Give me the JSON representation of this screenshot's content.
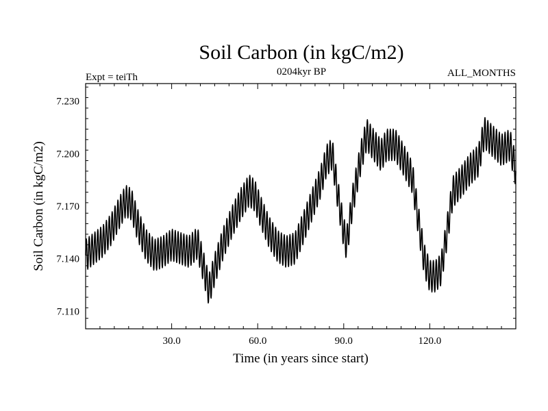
{
  "chart_data": {
    "type": "line",
    "title": "Soil Carbon (in kgC/m2)",
    "subtitle_left": "Expt = teiTh",
    "subtitle_center": "0204kyr BP",
    "subtitle_right": "ALL_MONTHS",
    "xlabel": "Time (in years since start)",
    "ylabel": "Soil Carbon (in kgC/m2)",
    "xlim": [
      0,
      150
    ],
    "ylim": [
      7.1,
      7.24
    ],
    "x_ticks": [
      30,
      60,
      90,
      120
    ],
    "x_tick_labels": [
      "30.0",
      "60.0",
      "90.0",
      "120.0"
    ],
    "y_ticks": [
      7.11,
      7.14,
      7.17,
      7.2,
      7.23
    ],
    "y_tick_labels": [
      "7.110",
      "7.140",
      "7.170",
      "7.200",
      "7.230"
    ],
    "grid": false,
    "series": [
      {
        "color": "#000000",
        "seasonal_amplitude": 0.009,
        "x": [
          0,
          3,
          6,
          9,
          12,
          14,
          16,
          18,
          21,
          24,
          27,
          30,
          33,
          36,
          39,
          41,
          43,
          45,
          48,
          51,
          54,
          57,
          59,
          61,
          64,
          67,
          70,
          73,
          76,
          79,
          82,
          84,
          86,
          88,
          90,
          91,
          93,
          96,
          98,
          100,
          103,
          105,
          108,
          111,
          114,
          116,
          118,
          120,
          122,
          124,
          126,
          128,
          131,
          134,
          137,
          139,
          142,
          145,
          148,
          150
        ],
        "y": [
          7.142,
          7.146,
          7.15,
          7.157,
          7.167,
          7.173,
          7.171,
          7.16,
          7.148,
          7.142,
          7.144,
          7.148,
          7.146,
          7.144,
          7.149,
          7.136,
          7.122,
          7.134,
          7.149,
          7.161,
          7.171,
          7.179,
          7.176,
          7.167,
          7.155,
          7.147,
          7.144,
          7.146,
          7.158,
          7.171,
          7.184,
          7.196,
          7.2,
          7.176,
          7.155,
          7.148,
          7.172,
          7.198,
          7.211,
          7.206,
          7.199,
          7.205,
          7.205,
          7.196,
          7.186,
          7.162,
          7.14,
          7.13,
          7.13,
          7.134,
          7.155,
          7.178,
          7.184,
          7.191,
          7.196,
          7.212,
          7.207,
          7.202,
          7.205,
          7.19
        ]
      }
    ]
  }
}
